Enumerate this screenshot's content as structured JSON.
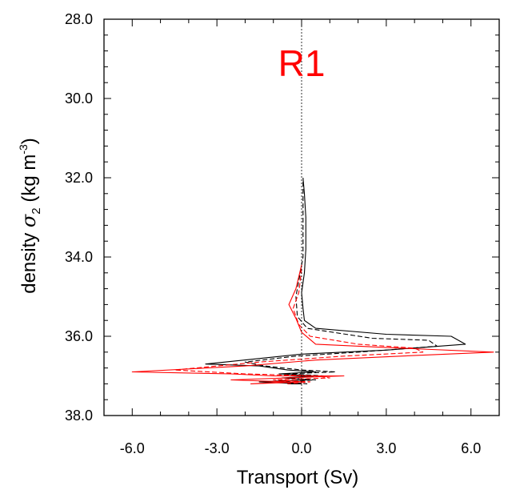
{
  "chart_data": {
    "type": "line",
    "title": "R1",
    "xlabel": "Transport (Sv)",
    "ylabel": {
      "prefix": "density ",
      "symbol": "σ",
      "subscript": "2",
      "unit_open": " (kg m",
      "unit_exp": "-3",
      "unit_close": ")"
    },
    "xlim": [
      -7,
      7
    ],
    "ylim": [
      38,
      28
    ],
    "y_inverted": true,
    "xticks": [
      -6,
      -3,
      0,
      3,
      6
    ],
    "xtick_labels": [
      "-6.0",
      "-3.0",
      "0.0",
      "3.0",
      "6.0"
    ],
    "yticks": [
      28,
      30,
      32,
      34,
      36,
      38
    ],
    "ytick_labels": [
      "28.0",
      "30.0",
      "32.0",
      "34.0",
      "36.0",
      "38.0"
    ],
    "zero_line": {
      "x": 0,
      "style": "dotted"
    },
    "series": [
      {
        "color": "#000000",
        "dash": "solid",
        "points": [
          [
            0.05,
            32.0
          ],
          [
            0.1,
            32.4
          ],
          [
            0.15,
            33.0
          ],
          [
            0.15,
            33.8
          ],
          [
            0.1,
            34.4
          ],
          [
            0.0,
            34.9
          ],
          [
            0.05,
            35.3
          ],
          [
            0.1,
            35.6
          ],
          [
            0.5,
            35.8
          ],
          [
            3.0,
            35.95
          ],
          [
            5.3,
            36.0
          ],
          [
            5.8,
            36.2
          ],
          [
            3.0,
            36.35
          ],
          [
            0.0,
            36.45
          ],
          [
            -3.4,
            36.7
          ],
          [
            -1.5,
            36.75
          ],
          [
            -0.5,
            36.85
          ],
          [
            0.5,
            36.9
          ],
          [
            -0.8,
            36.95
          ],
          [
            0.5,
            37.0
          ],
          [
            -0.7,
            37.05
          ],
          [
            0.3,
            37.1
          ],
          [
            -1.5,
            37.15
          ],
          [
            0.0,
            37.2
          ],
          [
            -0.5,
            37.2
          ]
        ]
      },
      {
        "color": "#000000",
        "dash": "dashed",
        "points": [
          [
            0.05,
            32.1
          ],
          [
            0.05,
            33.0
          ],
          [
            0.05,
            34.0
          ],
          [
            -0.1,
            34.6
          ],
          [
            -0.2,
            35.0
          ],
          [
            -0.15,
            35.5
          ],
          [
            0.2,
            35.8
          ],
          [
            2.5,
            36.05
          ],
          [
            4.5,
            36.1
          ],
          [
            4.8,
            36.25
          ],
          [
            2.0,
            36.4
          ],
          [
            -0.2,
            36.5
          ],
          [
            -2.0,
            36.65
          ],
          [
            -1.3,
            36.75
          ],
          [
            0.0,
            36.85
          ],
          [
            1.2,
            36.9
          ],
          [
            -0.5,
            36.95
          ],
          [
            0.8,
            37.0
          ],
          [
            -0.5,
            37.05
          ],
          [
            0.5,
            37.1
          ],
          [
            -0.8,
            37.15
          ],
          [
            0.2,
            37.2
          ]
        ]
      },
      {
        "color": "#ff0000",
        "dash": "solid",
        "points": [
          [
            0.0,
            34.2
          ],
          [
            -0.2,
            34.8
          ],
          [
            -0.45,
            35.2
          ],
          [
            -0.2,
            35.55
          ],
          [
            0.0,
            35.9
          ],
          [
            0.5,
            36.2
          ],
          [
            3.5,
            36.3
          ],
          [
            6.8,
            36.4
          ],
          [
            3.5,
            36.5
          ],
          [
            0.5,
            36.6
          ],
          [
            -2.0,
            36.75
          ],
          [
            -6.0,
            36.9
          ],
          [
            -2.5,
            36.95
          ],
          [
            -1.0,
            37.0
          ],
          [
            1.5,
            37.0
          ],
          [
            -2.5,
            37.1
          ],
          [
            -0.5,
            37.15
          ],
          [
            -1.8,
            37.2
          ],
          [
            0.0,
            37.15
          ],
          [
            -0.8,
            37.1
          ]
        ]
      },
      {
        "color": "#ff0000",
        "dash": "dashed",
        "points": [
          [
            0.0,
            34.3
          ],
          [
            -0.1,
            34.9
          ],
          [
            -0.3,
            35.3
          ],
          [
            -0.1,
            35.7
          ],
          [
            0.3,
            36.0
          ],
          [
            2.0,
            36.2
          ],
          [
            4.0,
            36.3
          ],
          [
            4.3,
            36.4
          ],
          [
            1.5,
            36.5
          ],
          [
            -1.5,
            36.65
          ],
          [
            -4.5,
            36.85
          ],
          [
            -2.0,
            36.95
          ],
          [
            0.5,
            37.0
          ],
          [
            1.0,
            37.05
          ],
          [
            -1.0,
            37.1
          ],
          [
            0.3,
            37.15
          ],
          [
            -0.5,
            37.2
          ]
        ]
      }
    ]
  }
}
